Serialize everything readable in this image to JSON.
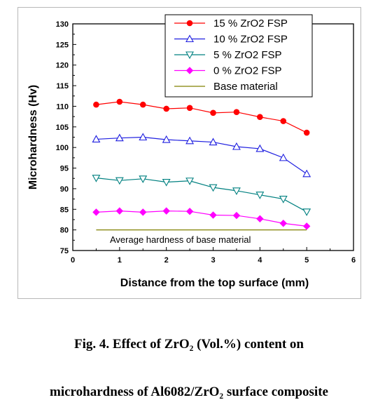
{
  "chart_data": {
    "type": "line",
    "xlabel": "Distance from the top surface (mm)",
    "ylabel": "Microhardness (Hv)",
    "xlim": [
      0,
      6
    ],
    "ylim": [
      75,
      130
    ],
    "xticks": [
      0,
      1,
      2,
      3,
      4,
      5,
      6
    ],
    "yticks": [
      75,
      80,
      85,
      90,
      95,
      100,
      105,
      110,
      115,
      120,
      125,
      130
    ],
    "legend_position": "top-right",
    "grid": false,
    "x": [
      0.5,
      1.0,
      1.5,
      2.0,
      2.5,
      3.0,
      3.5,
      4.0,
      4.5,
      5.0
    ],
    "series": [
      {
        "name": "15 % ZrO2 FSP",
        "color": "#ff0000",
        "marker": "filled-circle",
        "values": [
          110.4,
          111.1,
          110.4,
          109.4,
          109.6,
          108.4,
          108.6,
          107.4,
          106.4,
          103.6
        ]
      },
      {
        "name": "10 % ZrO2 FSP",
        "color": "#1f1fe0",
        "marker": "open-triangle-up",
        "values": [
          102.0,
          102.3,
          102.5,
          101.9,
          101.6,
          101.3,
          100.2,
          99.7,
          97.5,
          93.6
        ]
      },
      {
        "name": "5 % ZrO2 FSP",
        "color": "#008080",
        "marker": "open-triangle-down",
        "values": [
          92.6,
          92.0,
          92.4,
          91.6,
          91.9,
          90.3,
          89.5,
          88.5,
          87.5,
          84.4
        ]
      },
      {
        "name": "0 % ZrO2 FSP",
        "color": "#ff00ff",
        "marker": "filled-diamond",
        "values": [
          84.3,
          84.6,
          84.3,
          84.6,
          84.5,
          83.6,
          83.5,
          82.7,
          81.6,
          80.9
        ]
      }
    ],
    "base_line": {
      "name": "Base material",
      "color": "#808000",
      "y": 80,
      "x": [
        0.5,
        5.0
      ]
    },
    "annotation": "Average hardness of base material"
  },
  "caption": {
    "line1": "Fig. 4. Effect of ZrO₂ (Vol.%) content on",
    "line2": "microhardness of Al6082/ZrO₂ surface composite"
  }
}
